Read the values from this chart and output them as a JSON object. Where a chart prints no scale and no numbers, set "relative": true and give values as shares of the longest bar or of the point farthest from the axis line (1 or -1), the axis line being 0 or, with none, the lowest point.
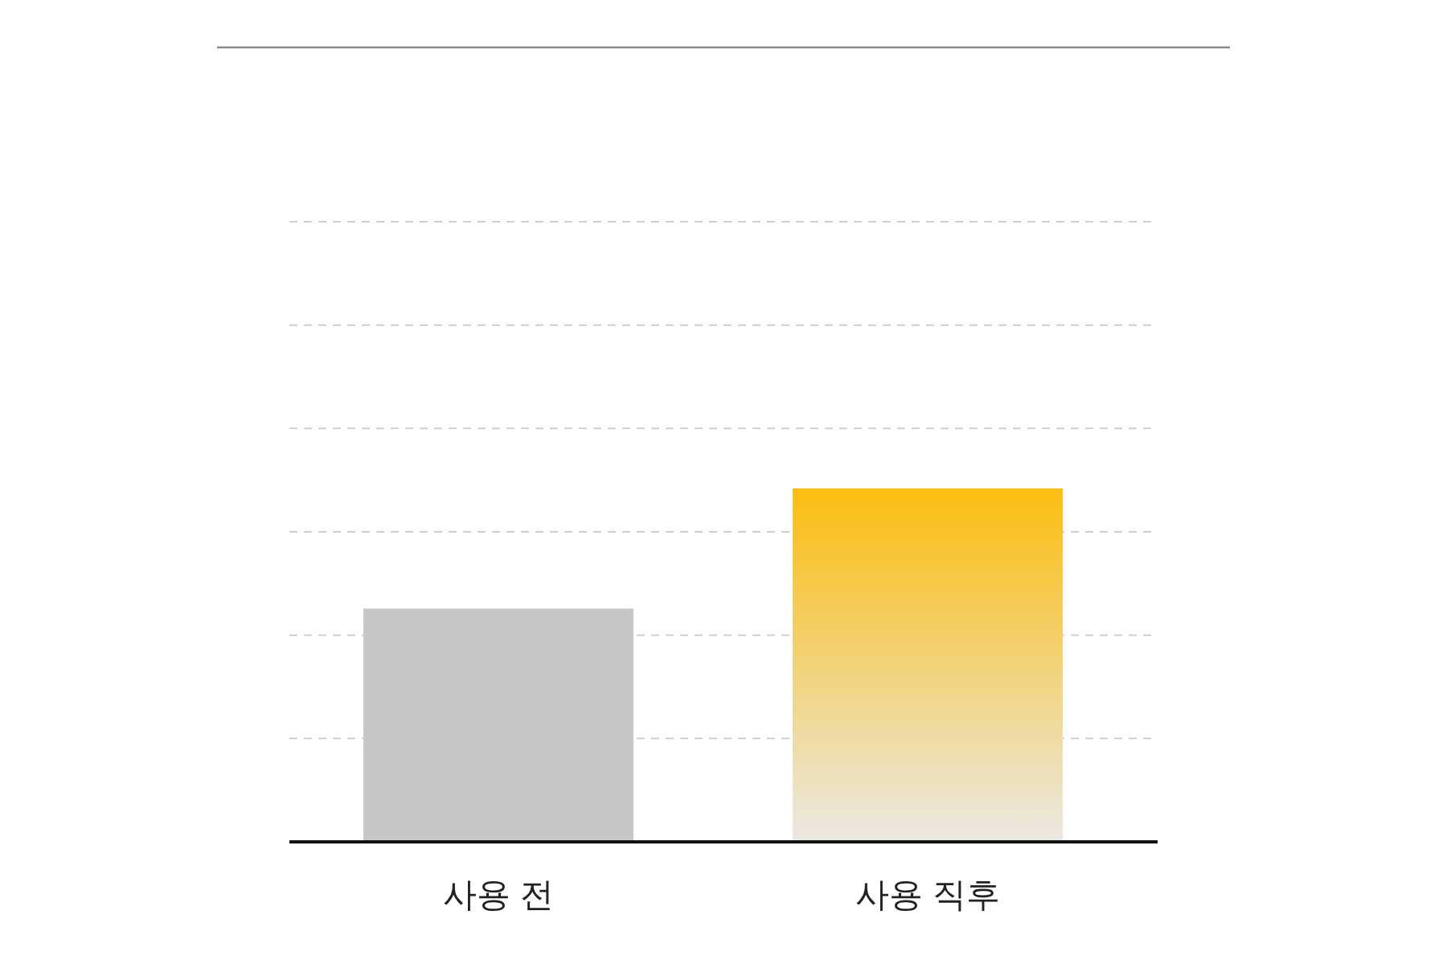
{
  "chart_data": {
    "type": "bar",
    "categories": [
      "사용 전",
      "사용 직후"
    ],
    "values": [
      0.66,
      1
    ],
    "colors": [
      "#c6c6c6",
      "#fbbd10"
    ],
    "relative": true,
    "grid": "y"
  }
}
